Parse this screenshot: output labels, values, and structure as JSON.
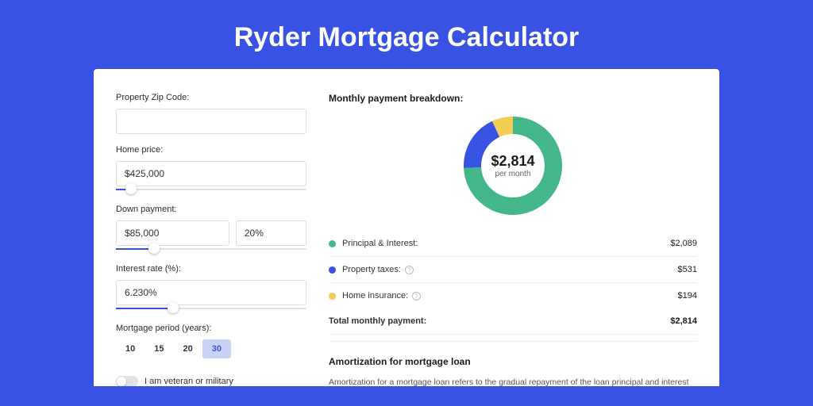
{
  "page": {
    "title": "Ryder Mortgage Calculator",
    "background_color": "#3852e3",
    "card_background": "#ffffff"
  },
  "form": {
    "zip_label": "Property Zip Code:",
    "zip_value": "",
    "home_price_label": "Home price:",
    "home_price_value": "$425,000",
    "home_price_slider_pct": 8,
    "down_payment_label": "Down payment:",
    "down_payment_amount": "$85,000",
    "down_payment_pct": "20%",
    "down_payment_slider_pct": 20,
    "interest_label": "Interest rate (%):",
    "interest_value": "6.230%",
    "interest_slider_pct": 30,
    "period_label": "Mortgage period (years):",
    "periods": [
      "10",
      "15",
      "20",
      "30"
    ],
    "period_selected_index": 3,
    "veteran_label": "I am veteran or military",
    "veteran_on": false
  },
  "breakdown": {
    "title": "Monthly payment breakdown:",
    "donut": {
      "center_value": "$2,814",
      "center_sub": "per month",
      "slices": [
        {
          "label": "Principal & Interest:",
          "amount": "$2,089",
          "value": 2089,
          "color": "#43b789"
        },
        {
          "label": "Property taxes:",
          "amount": "$531",
          "value": 531,
          "color": "#3852e3",
          "help": true
        },
        {
          "label": "Home insurance:",
          "amount": "$194",
          "value": 194,
          "color": "#f3cd55",
          "help": true
        }
      ],
      "background": "#ffffff",
      "thickness": 22
    },
    "total_label": "Total monthly payment:",
    "total_amount": "$2,814"
  },
  "amortization": {
    "title": "Amortization for mortgage loan",
    "text": "Amortization for a mortgage loan refers to the gradual repayment of the loan principal and interest over a specified"
  }
}
